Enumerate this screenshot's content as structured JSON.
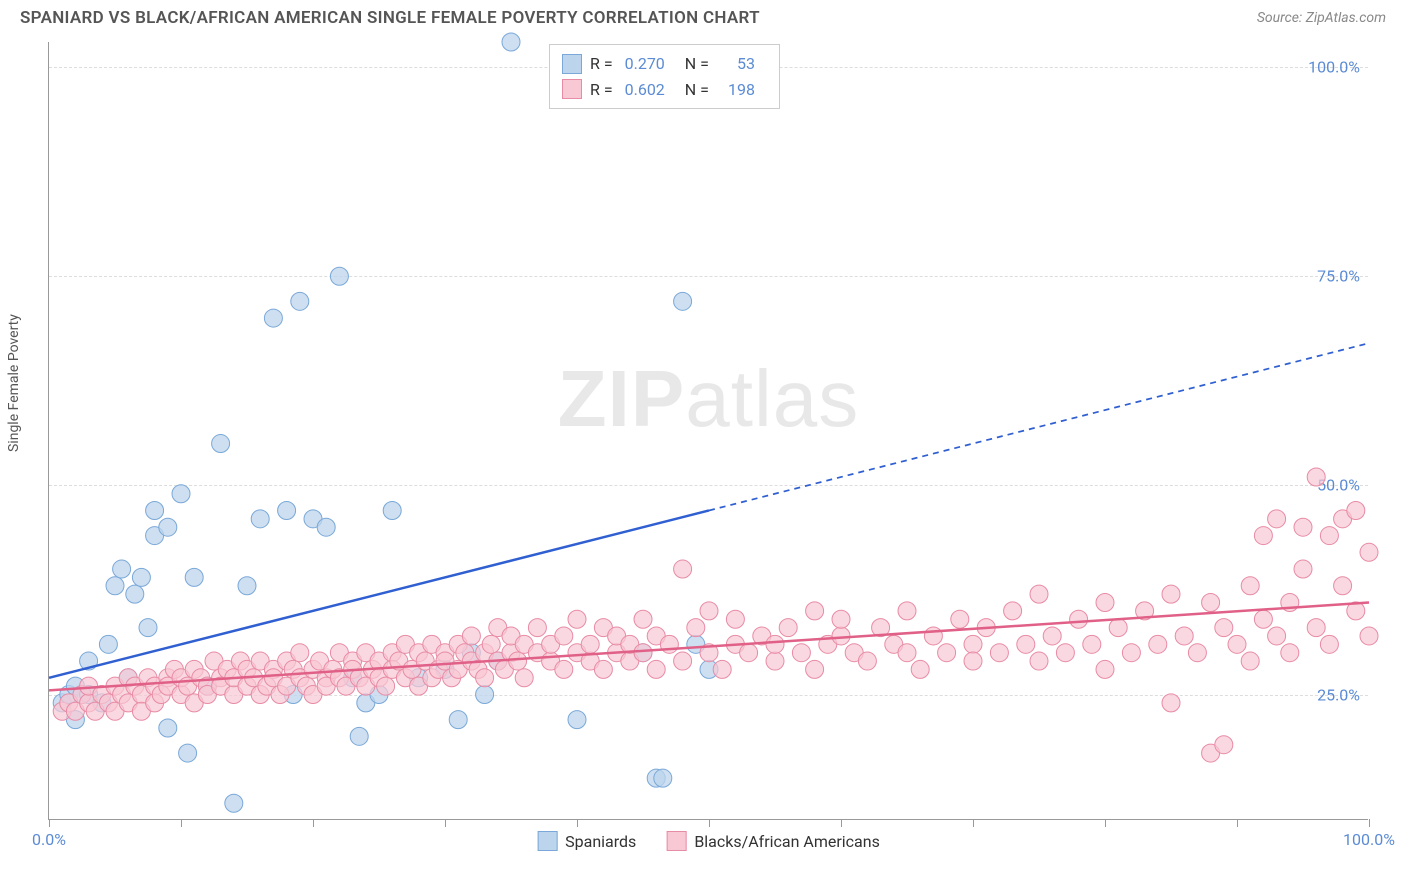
{
  "header": {
    "title": "SPANIARD VS BLACK/AFRICAN AMERICAN SINGLE FEMALE POVERTY CORRELATION CHART",
    "source": "Source: ZipAtlas.com"
  },
  "watermark": {
    "bold": "ZIP",
    "rest": "atlas"
  },
  "y_axis_label": "Single Female Poverty",
  "chart": {
    "type": "scatter",
    "xlim": [
      0,
      100
    ],
    "ylim": [
      10,
      103
    ],
    "x_ticks": [
      0,
      10,
      20,
      30,
      40,
      50,
      60,
      70,
      80,
      90,
      100
    ],
    "x_tick_labels": {
      "0": "0.0%",
      "100": "100.0%"
    },
    "y_grid": [
      25,
      50,
      75,
      100
    ],
    "y_tick_labels": {
      "25": "25.0%",
      "50": "50.0%",
      "75": "75.0%",
      "100": "100.0%"
    },
    "grid_color": "#dddddd",
    "axis_color": "#999999",
    "tick_label_color": "#5b8bd4",
    "series": [
      {
        "id": "spaniards",
        "label": "Spaniards",
        "R": "0.270",
        "N": "53",
        "marker_fill": "#bcd4ec",
        "marker_stroke": "#7aa8d8",
        "marker_opacity": 0.75,
        "marker_radius": 9,
        "line_color": "#2f5fd0",
        "line_width": 2.5,
        "trend": {
          "x1": 0,
          "y1": 27,
          "x_solid_end": 50,
          "y_solid_end": 47,
          "x2": 100,
          "y2": 67
        },
        "points": [
          [
            1,
            24
          ],
          [
            1.5,
            25
          ],
          [
            2,
            26
          ],
          [
            2,
            22
          ],
          [
            2.5,
            25
          ],
          [
            3,
            25
          ],
          [
            3,
            29
          ],
          [
            4,
            24
          ],
          [
            4.5,
            31
          ],
          [
            5,
            38
          ],
          [
            5.5,
            40
          ],
          [
            6,
            27
          ],
          [
            6.5,
            37
          ],
          [
            7,
            39
          ],
          [
            7.5,
            33
          ],
          [
            8,
            44
          ],
          [
            8,
            47
          ],
          [
            9,
            45
          ],
          [
            9,
            21
          ],
          [
            10,
            49
          ],
          [
            10.5,
            18
          ],
          [
            11,
            39
          ],
          [
            12,
            26
          ],
          [
            13,
            55
          ],
          [
            14,
            12
          ],
          [
            15,
            38
          ],
          [
            16,
            46
          ],
          [
            17,
            70
          ],
          [
            18,
            47
          ],
          [
            18.5,
            25
          ],
          [
            19,
            72
          ],
          [
            20,
            46
          ],
          [
            21,
            45
          ],
          [
            22,
            75
          ],
          [
            23,
            27
          ],
          [
            23.5,
            20
          ],
          [
            24,
            24
          ],
          [
            25,
            25
          ],
          [
            26,
            47
          ],
          [
            28,
            27
          ],
          [
            30,
            28
          ],
          [
            31,
            22
          ],
          [
            32,
            30
          ],
          [
            33,
            25
          ],
          [
            34,
            29
          ],
          [
            35,
            103
          ],
          [
            40,
            22
          ],
          [
            45,
            30
          ],
          [
            46,
            15
          ],
          [
            46.5,
            15
          ],
          [
            48,
            72
          ],
          [
            49,
            31
          ],
          [
            50,
            28
          ]
        ]
      },
      {
        "id": "blacks",
        "label": "Blacks/African Americans",
        "R": "0.602",
        "N": "198",
        "marker_fill": "#f8c8d4",
        "marker_stroke": "#e88ba5",
        "marker_opacity": 0.7,
        "marker_radius": 9,
        "line_color": "#e06088",
        "line_width": 2.5,
        "trend": {
          "x1": 0,
          "y1": 25.5,
          "x_solid_end": 100,
          "y_solid_end": 36,
          "x2": 100,
          "y2": 36
        },
        "points": [
          [
            1,
            23
          ],
          [
            1.5,
            24
          ],
          [
            2,
            23
          ],
          [
            2.5,
            25
          ],
          [
            3,
            24
          ],
          [
            3,
            26
          ],
          [
            3.5,
            23
          ],
          [
            4,
            25
          ],
          [
            4.5,
            24
          ],
          [
            5,
            26
          ],
          [
            5,
            23
          ],
          [
            5.5,
            25
          ],
          [
            6,
            27
          ],
          [
            6,
            24
          ],
          [
            6.5,
            26
          ],
          [
            7,
            25
          ],
          [
            7,
            23
          ],
          [
            7.5,
            27
          ],
          [
            8,
            26
          ],
          [
            8,
            24
          ],
          [
            8.5,
            25
          ],
          [
            9,
            27
          ],
          [
            9,
            26
          ],
          [
            9.5,
            28
          ],
          [
            10,
            25
          ],
          [
            10,
            27
          ],
          [
            10.5,
            26
          ],
          [
            11,
            24
          ],
          [
            11,
            28
          ],
          [
            11.5,
            27
          ],
          [
            12,
            26
          ],
          [
            12,
            25
          ],
          [
            12.5,
            29
          ],
          [
            13,
            27
          ],
          [
            13,
            26
          ],
          [
            13.5,
            28
          ],
          [
            14,
            25
          ],
          [
            14,
            27
          ],
          [
            14.5,
            29
          ],
          [
            15,
            26
          ],
          [
            15,
            28
          ],
          [
            15.5,
            27
          ],
          [
            16,
            25
          ],
          [
            16,
            29
          ],
          [
            16.5,
            26
          ],
          [
            17,
            28
          ],
          [
            17,
            27
          ],
          [
            17.5,
            25
          ],
          [
            18,
            29
          ],
          [
            18,
            26
          ],
          [
            18.5,
            28
          ],
          [
            19,
            27
          ],
          [
            19,
            30
          ],
          [
            19.5,
            26
          ],
          [
            20,
            28
          ],
          [
            20,
            25
          ],
          [
            20.5,
            29
          ],
          [
            21,
            27
          ],
          [
            21,
            26
          ],
          [
            21.5,
            28
          ],
          [
            22,
            30
          ],
          [
            22,
            27
          ],
          [
            22.5,
            26
          ],
          [
            23,
            29
          ],
          [
            23,
            28
          ],
          [
            23.5,
            27
          ],
          [
            24,
            26
          ],
          [
            24,
            30
          ],
          [
            24.5,
            28
          ],
          [
            25,
            29
          ],
          [
            25,
            27
          ],
          [
            25.5,
            26
          ],
          [
            26,
            30
          ],
          [
            26,
            28
          ],
          [
            26.5,
            29
          ],
          [
            27,
            27
          ],
          [
            27,
            31
          ],
          [
            27.5,
            28
          ],
          [
            28,
            30
          ],
          [
            28,
            26
          ],
          [
            28.5,
            29
          ],
          [
            29,
            27
          ],
          [
            29,
            31
          ],
          [
            29.5,
            28
          ],
          [
            30,
            30
          ],
          [
            30,
            29
          ],
          [
            30.5,
            27
          ],
          [
            31,
            31
          ],
          [
            31,
            28
          ],
          [
            31.5,
            30
          ],
          [
            32,
            29
          ],
          [
            32,
            32
          ],
          [
            32.5,
            28
          ],
          [
            33,
            30
          ],
          [
            33,
            27
          ],
          [
            33.5,
            31
          ],
          [
            34,
            29
          ],
          [
            34,
            33
          ],
          [
            34.5,
            28
          ],
          [
            35,
            30
          ],
          [
            35,
            32
          ],
          [
            35.5,
            29
          ],
          [
            36,
            31
          ],
          [
            36,
            27
          ],
          [
            37,
            30
          ],
          [
            37,
            33
          ],
          [
            38,
            29
          ],
          [
            38,
            31
          ],
          [
            39,
            28
          ],
          [
            39,
            32
          ],
          [
            40,
            30
          ],
          [
            40,
            34
          ],
          [
            41,
            29
          ],
          [
            41,
            31
          ],
          [
            42,
            28
          ],
          [
            42,
            33
          ],
          [
            43,
            30
          ],
          [
            43,
            32
          ],
          [
            44,
            29
          ],
          [
            44,
            31
          ],
          [
            45,
            30
          ],
          [
            45,
            34
          ],
          [
            46,
            28
          ],
          [
            46,
            32
          ],
          [
            47,
            31
          ],
          [
            48,
            40
          ],
          [
            48,
            29
          ],
          [
            49,
            33
          ],
          [
            50,
            30
          ],
          [
            50,
            35
          ],
          [
            51,
            28
          ],
          [
            52,
            31
          ],
          [
            52,
            34
          ],
          [
            53,
            30
          ],
          [
            54,
            32
          ],
          [
            55,
            29
          ],
          [
            55,
            31
          ],
          [
            56,
            33
          ],
          [
            57,
            30
          ],
          [
            58,
            35
          ],
          [
            58,
            28
          ],
          [
            59,
            31
          ],
          [
            60,
            32
          ],
          [
            60,
            34
          ],
          [
            61,
            30
          ],
          [
            62,
            29
          ],
          [
            63,
            33
          ],
          [
            64,
            31
          ],
          [
            65,
            30
          ],
          [
            65,
            35
          ],
          [
            66,
            28
          ],
          [
            67,
            32
          ],
          [
            68,
            30
          ],
          [
            69,
            34
          ],
          [
            70,
            31
          ],
          [
            70,
            29
          ],
          [
            71,
            33
          ],
          [
            72,
            30
          ],
          [
            73,
            35
          ],
          [
            74,
            31
          ],
          [
            75,
            37
          ],
          [
            75,
            29
          ],
          [
            76,
            32
          ],
          [
            77,
            30
          ],
          [
            78,
            34
          ],
          [
            79,
            31
          ],
          [
            80,
            36
          ],
          [
            80,
            28
          ],
          [
            81,
            33
          ],
          [
            82,
            30
          ],
          [
            83,
            35
          ],
          [
            84,
            31
          ],
          [
            85,
            24
          ],
          [
            85,
            37
          ],
          [
            86,
            32
          ],
          [
            87,
            30
          ],
          [
            88,
            18
          ],
          [
            88,
            36
          ],
          [
            89,
            33
          ],
          [
            89,
            19
          ],
          [
            90,
            31
          ],
          [
            91,
            38
          ],
          [
            91,
            29
          ],
          [
            92,
            34
          ],
          [
            92,
            44
          ],
          [
            93,
            32
          ],
          [
            93,
            46
          ],
          [
            94,
            36
          ],
          [
            94,
            30
          ],
          [
            95,
            40
          ],
          [
            95,
            45
          ],
          [
            96,
            51
          ],
          [
            96,
            33
          ],
          [
            97,
            44
          ],
          [
            97,
            31
          ],
          [
            98,
            38
          ],
          [
            98,
            46
          ],
          [
            99,
            47
          ],
          [
            99,
            35
          ],
          [
            100,
            42
          ],
          [
            100,
            32
          ]
        ]
      }
    ]
  },
  "legend_bottom": [
    {
      "label": "Spaniards",
      "fill": "#bcd4ec",
      "stroke": "#7aa8d8"
    },
    {
      "label": "Blacks/African Americans",
      "fill": "#f8c8d4",
      "stroke": "#e88ba5"
    }
  ]
}
